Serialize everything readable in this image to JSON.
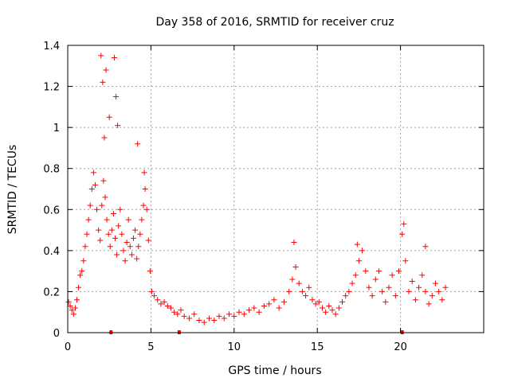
{
  "chart_data": {
    "type": "scatter",
    "title": "Day 358 of 2016, SRMTID for receiver cruz",
    "xlabel": "GPS time / hours",
    "ylabel": "SRMTID / TECUs",
    "xlim": [
      0,
      25
    ],
    "ylim": [
      0,
      1.4
    ],
    "xticks": [
      0,
      5,
      10,
      15,
      20
    ],
    "yticks": [
      0,
      0.2,
      0.4,
      0.6,
      0.8,
      1,
      1.2,
      1.4
    ],
    "grid": true,
    "marker": "+",
    "color": "#ff0000",
    "series": [
      {
        "name": "SRMTID",
        "x": [
          0.05,
          0.15,
          0.25,
          0.35,
          0.45,
          0.55,
          0.65,
          0.75,
          0.85,
          0.95,
          1.05,
          1.15,
          1.25,
          1.35,
          1.45,
          1.55,
          1.65,
          1.75,
          1.85,
          1.95,
          2.05,
          2.15,
          2.25,
          2.35,
          2.45,
          2.55,
          2.65,
          2.75,
          2.85,
          2.95,
          3.05,
          3.15,
          3.25,
          3.35,
          3.45,
          3.55,
          3.65,
          3.75,
          3.85,
          3.95,
          4.05,
          4.15,
          4.25,
          4.35,
          4.45,
          4.55,
          4.65,
          4.75,
          4.85,
          4.95,
          5.05,
          5.2,
          5.4,
          5.6,
          5.8,
          6.0,
          6.2,
          6.4,
          6.6,
          6.8,
          7.0,
          7.3,
          7.6,
          7.9,
          8.2,
          8.5,
          8.8,
          9.1,
          9.4,
          9.7,
          10.0,
          10.3,
          10.6,
          10.9,
          11.2,
          11.5,
          11.8,
          12.1,
          12.4,
          12.7,
          13.0,
          13.3,
          13.5,
          13.7,
          13.9,
          14.1,
          14.3,
          14.5,
          14.7,
          14.9,
          15.1,
          15.3,
          15.5,
          15.7,
          15.9,
          16.1,
          16.3,
          16.5,
          16.7,
          16.9,
          17.1,
          17.3,
          17.5,
          17.7,
          17.9,
          18.1,
          18.3,
          18.5,
          18.7,
          18.9,
          19.1,
          19.3,
          19.5,
          19.7,
          19.9,
          20.1,
          20.3,
          20.5,
          20.7,
          20.9,
          21.1,
          21.3,
          21.5,
          21.7,
          21.9,
          22.1,
          22.3,
          22.5,
          22.7,
          2.0,
          2.1,
          2.3,
          2.8,
          2.9,
          2.5,
          2.2,
          3.0,
          4.2,
          4.6,
          13.6,
          17.4,
          20.2,
          21.5
        ],
        "y": [
          0.15,
          0.13,
          0.11,
          0.09,
          0.12,
          0.16,
          0.22,
          0.28,
          0.3,
          0.35,
          0.42,
          0.48,
          0.55,
          0.62,
          0.7,
          0.78,
          0.72,
          0.6,
          0.5,
          0.45,
          0.62,
          0.74,
          0.66,
          0.55,
          0.48,
          0.42,
          0.5,
          0.58,
          0.46,
          0.38,
          0.52,
          0.6,
          0.48,
          0.4,
          0.35,
          0.44,
          0.55,
          0.42,
          0.38,
          0.46,
          0.5,
          0.36,
          0.42,
          0.48,
          0.55,
          0.62,
          0.7,
          0.6,
          0.45,
          0.3,
          0.2,
          0.18,
          0.16,
          0.14,
          0.15,
          0.13,
          0.12,
          0.1,
          0.09,
          0.11,
          0.08,
          0.07,
          0.09,
          0.06,
          0.05,
          0.07,
          0.06,
          0.08,
          0.07,
          0.09,
          0.08,
          0.1,
          0.09,
          0.11,
          0.12,
          0.1,
          0.13,
          0.14,
          0.16,
          0.12,
          0.15,
          0.2,
          0.26,
          0.32,
          0.24,
          0.2,
          0.18,
          0.22,
          0.16,
          0.14,
          0.15,
          0.12,
          0.1,
          0.13,
          0.11,
          0.09,
          0.12,
          0.15,
          0.18,
          0.2,
          0.24,
          0.28,
          0.35,
          0.4,
          0.3,
          0.22,
          0.18,
          0.26,
          0.3,
          0.2,
          0.15,
          0.22,
          0.28,
          0.18,
          0.3,
          0.48,
          0.35,
          0.2,
          0.25,
          0.16,
          0.22,
          0.28,
          0.2,
          0.14,
          0.18,
          0.24,
          0.2,
          0.16,
          0.22,
          1.35,
          1.22,
          1.28,
          1.34,
          1.15,
          1.05,
          0.95,
          1.01,
          0.92,
          0.78,
          0.44,
          0.43,
          0.53,
          0.42
        ]
      }
    ],
    "axis_markers_x": [
      2.6,
      6.7,
      20.1
    ]
  }
}
